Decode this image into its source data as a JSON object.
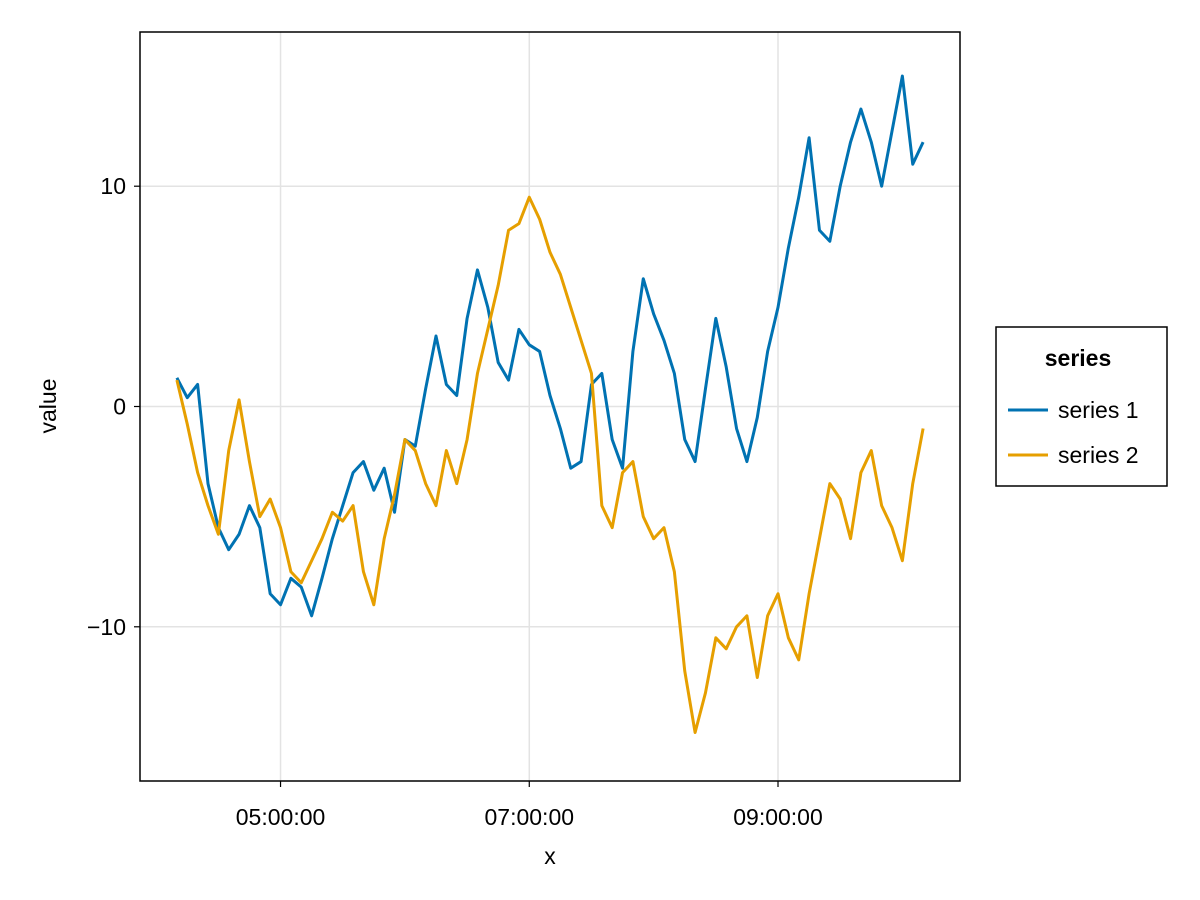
{
  "chart_data": {
    "type": "line",
    "xlabel": "x",
    "ylabel": "value",
    "x_axis_type": "time",
    "x_range": [
      "04:10:00",
      "10:10:00"
    ],
    "x_ticks": [
      "05:00:00",
      "07:00:00",
      "09:00:00"
    ],
    "ylim": [
      -17,
      17
    ],
    "y_ticks": [
      -10,
      0,
      10
    ],
    "y_tick_labels": [
      "−10",
      "0",
      "10"
    ],
    "grid": true,
    "legend": {
      "title": "series",
      "position": "right"
    },
    "series": [
      {
        "name": "series 1",
        "color": "#0072B2",
        "points": [
          [
            "04:10:00",
            1.3
          ],
          [
            "04:15:00",
            0.4
          ],
          [
            "04:20:00",
            1.0
          ],
          [
            "04:25:00",
            -3.5
          ],
          [
            "04:30:00",
            -5.5
          ],
          [
            "04:35:00",
            -6.5
          ],
          [
            "04:40:00",
            -5.8
          ],
          [
            "04:45:00",
            -4.5
          ],
          [
            "04:50:00",
            -5.5
          ],
          [
            "04:55:00",
            -8.5
          ],
          [
            "05:00:00",
            -9.0
          ],
          [
            "05:05:00",
            -7.8
          ],
          [
            "05:10:00",
            -8.2
          ],
          [
            "05:15:00",
            -9.5
          ],
          [
            "05:20:00",
            -7.8
          ],
          [
            "05:25:00",
            -6.0
          ],
          [
            "05:30:00",
            -4.5
          ],
          [
            "05:35:00",
            -3.0
          ],
          [
            "05:40:00",
            -2.5
          ],
          [
            "05:45:00",
            -3.8
          ],
          [
            "05:50:00",
            -2.8
          ],
          [
            "05:55:00",
            -4.8
          ],
          [
            "06:00:00",
            -1.5
          ],
          [
            "06:05:00",
            -1.8
          ],
          [
            "06:10:00",
            0.8
          ],
          [
            "06:15:00",
            3.2
          ],
          [
            "06:20:00",
            1.0
          ],
          [
            "06:25:00",
            0.5
          ],
          [
            "06:30:00",
            4.0
          ],
          [
            "06:35:00",
            6.2
          ],
          [
            "06:40:00",
            4.5
          ],
          [
            "06:45:00",
            2.0
          ],
          [
            "06:50:00",
            1.2
          ],
          [
            "06:55:00",
            3.5
          ],
          [
            "07:00:00",
            2.8
          ],
          [
            "07:05:00",
            2.5
          ],
          [
            "07:10:00",
            0.5
          ],
          [
            "07:15:00",
            -1.0
          ],
          [
            "07:20:00",
            -2.8
          ],
          [
            "07:25:00",
            -2.5
          ],
          [
            "07:30:00",
            1.0
          ],
          [
            "07:35:00",
            1.5
          ],
          [
            "07:40:00",
            -1.5
          ],
          [
            "07:45:00",
            -2.8
          ],
          [
            "07:50:00",
            2.5
          ],
          [
            "07:55:00",
            5.8
          ],
          [
            "08:00:00",
            4.2
          ],
          [
            "08:05:00",
            3.0
          ],
          [
            "08:10:00",
            1.5
          ],
          [
            "08:15:00",
            -1.5
          ],
          [
            "08:20:00",
            -2.5
          ],
          [
            "08:25:00",
            0.8
          ],
          [
            "08:30:00",
            4.0
          ],
          [
            "08:35:00",
            1.8
          ],
          [
            "08:40:00",
            -1.0
          ],
          [
            "08:45:00",
            -2.5
          ],
          [
            "08:50:00",
            -0.5
          ],
          [
            "08:55:00",
            2.5
          ],
          [
            "09:00:00",
            4.5
          ],
          [
            "09:05:00",
            7.2
          ],
          [
            "09:10:00",
            9.5
          ],
          [
            "09:15:00",
            12.2
          ],
          [
            "09:20:00",
            8.0
          ],
          [
            "09:25:00",
            7.5
          ],
          [
            "09:30:00",
            10.0
          ],
          [
            "09:35:00",
            12.0
          ],
          [
            "09:40:00",
            13.5
          ],
          [
            "09:45:00",
            12.0
          ],
          [
            "09:50:00",
            10.0
          ],
          [
            "09:55:00",
            12.5
          ],
          [
            "10:00:00",
            15.0
          ],
          [
            "10:05:00",
            11.0
          ],
          [
            "10:10:00",
            12.0
          ]
        ]
      },
      {
        "name": "series 2",
        "color": "#E69F00",
        "points": [
          [
            "04:10:00",
            1.2
          ],
          [
            "04:15:00",
            -0.8
          ],
          [
            "04:20:00",
            -3.0
          ],
          [
            "04:25:00",
            -4.5
          ],
          [
            "04:30:00",
            -5.8
          ],
          [
            "04:35:00",
            -2.0
          ],
          [
            "04:40:00",
            0.3
          ],
          [
            "04:45:00",
            -2.5
          ],
          [
            "04:50:00",
            -5.0
          ],
          [
            "04:55:00",
            -4.2
          ],
          [
            "05:00:00",
            -5.5
          ],
          [
            "05:05:00",
            -7.5
          ],
          [
            "05:10:00",
            -8.0
          ],
          [
            "05:15:00",
            -7.0
          ],
          [
            "05:20:00",
            -6.0
          ],
          [
            "05:25:00",
            -4.8
          ],
          [
            "05:30:00",
            -5.2
          ],
          [
            "05:35:00",
            -4.5
          ],
          [
            "05:40:00",
            -7.5
          ],
          [
            "05:45:00",
            -9.0
          ],
          [
            "05:50:00",
            -6.0
          ],
          [
            "05:55:00",
            -4.0
          ],
          [
            "06:00:00",
            -1.5
          ],
          [
            "06:05:00",
            -2.0
          ],
          [
            "06:10:00",
            -3.5
          ],
          [
            "06:15:00",
            -4.5
          ],
          [
            "06:20:00",
            -2.0
          ],
          [
            "06:25:00",
            -3.5
          ],
          [
            "06:30:00",
            -1.5
          ],
          [
            "06:35:00",
            1.5
          ],
          [
            "06:40:00",
            3.5
          ],
          [
            "06:45:00",
            5.5
          ],
          [
            "06:50:00",
            8.0
          ],
          [
            "06:55:00",
            8.3
          ],
          [
            "07:00:00",
            9.5
          ],
          [
            "07:05:00",
            8.5
          ],
          [
            "07:10:00",
            7.0
          ],
          [
            "07:15:00",
            6.0
          ],
          [
            "07:20:00",
            4.5
          ],
          [
            "07:25:00",
            3.0
          ],
          [
            "07:30:00",
            1.5
          ],
          [
            "07:35:00",
            -4.5
          ],
          [
            "07:40:00",
            -5.5
          ],
          [
            "07:45:00",
            -3.0
          ],
          [
            "07:50:00",
            -2.5
          ],
          [
            "07:55:00",
            -5.0
          ],
          [
            "08:00:00",
            -6.0
          ],
          [
            "08:05:00",
            -5.5
          ],
          [
            "08:10:00",
            -7.5
          ],
          [
            "08:15:00",
            -12.0
          ],
          [
            "08:20:00",
            -14.8
          ],
          [
            "08:25:00",
            -13.0
          ],
          [
            "08:30:00",
            -10.5
          ],
          [
            "08:35:00",
            -11.0
          ],
          [
            "08:40:00",
            -10.0
          ],
          [
            "08:45:00",
            -9.5
          ],
          [
            "08:50:00",
            -12.3
          ],
          [
            "08:55:00",
            -9.5
          ],
          [
            "09:00:00",
            -8.5
          ],
          [
            "09:05:00",
            -10.5
          ],
          [
            "09:10:00",
            -11.5
          ],
          [
            "09:15:00",
            -8.5
          ],
          [
            "09:20:00",
            -6.0
          ],
          [
            "09:25:00",
            -3.5
          ],
          [
            "09:30:00",
            -4.2
          ],
          [
            "09:35:00",
            -6.0
          ],
          [
            "09:40:00",
            -3.0
          ],
          [
            "09:45:00",
            -2.0
          ],
          [
            "09:50:00",
            -4.5
          ],
          [
            "09:55:00",
            -5.5
          ],
          [
            "10:00:00",
            -7.0
          ],
          [
            "10:05:00",
            -3.5
          ],
          [
            "10:10:00",
            -1.0
          ]
        ]
      }
    ]
  }
}
